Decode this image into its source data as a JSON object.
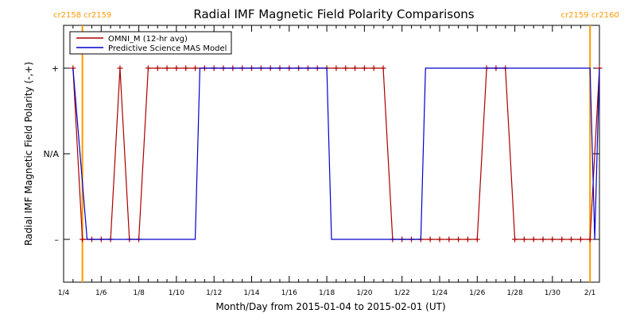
{
  "chart_data": {
    "type": "line",
    "title": "Radial IMF Magnetic Field Polarity Comparisons",
    "xlabel": "Month/Day from 2015-01-04 to 2015-02-01 (UT)",
    "ylabel": "Radial IMF Magnetic Field Polarity (-,+)",
    "x_start": "2015-01-04",
    "x_end": "2015-02-01",
    "xlim": [
      "2015-01-04T00:00",
      "2015-02-01T12:00"
    ],
    "ylim": [
      -1.5,
      1.5
    ],
    "x_tick_labels": [
      {
        "date": "2015-01-04",
        "label": "1/4"
      },
      {
        "date": "2015-01-06",
        "label": "1/6"
      },
      {
        "date": "2015-01-08",
        "label": "1/8"
      },
      {
        "date": "2015-01-10",
        "label": "1/10"
      },
      {
        "date": "2015-01-12",
        "label": "1/12"
      },
      {
        "date": "2015-01-14",
        "label": "1/14"
      },
      {
        "date": "2015-01-16",
        "label": "1/16"
      },
      {
        "date": "2015-01-18",
        "label": "1/18"
      },
      {
        "date": "2015-01-20",
        "label": "1/20"
      },
      {
        "date": "2015-01-22",
        "label": "1/22"
      },
      {
        "date": "2015-01-24",
        "label": "1/24"
      },
      {
        "date": "2015-01-26",
        "label": "1/26"
      },
      {
        "date": "2015-01-28",
        "label": "1/28"
      },
      {
        "date": "2015-01-30",
        "label": "1/30"
      },
      {
        "date": "2015-02-01",
        "label": "2/1"
      }
    ],
    "y_tick_labels": [
      {
        "value": 1,
        "label": "+"
      },
      {
        "value": 0,
        "label": "N/A"
      },
      {
        "value": -1,
        "label": "–"
      }
    ],
    "legend_position": "top-left",
    "carrington_markers": [
      {
        "date": "2015-01-05T00:00",
        "label": "cr2158 cr2159",
        "color": "#ff9900"
      },
      {
        "date": "2015-02-01T00:00",
        "label": "cr2159 cr2160",
        "color": "#ff9900"
      }
    ],
    "series": [
      {
        "name": "OMNI_M (12-hr avg)",
        "color": "#aa0000",
        "marker": "+",
        "points": [
          [
            "2015-01-04T12:00",
            1
          ],
          [
            "2015-01-05T00:00",
            -1
          ],
          [
            "2015-01-05T12:00",
            -1
          ],
          [
            "2015-01-06T00:00",
            -1
          ],
          [
            "2015-01-06T12:00",
            -1
          ],
          [
            "2015-01-07T00:00",
            1
          ],
          [
            "2015-01-07T12:00",
            -1
          ],
          [
            "2015-01-08T00:00",
            -1
          ],
          [
            "2015-01-08T12:00",
            1
          ],
          [
            "2015-01-09T00:00",
            1
          ],
          [
            "2015-01-09T12:00",
            1
          ],
          [
            "2015-01-10T00:00",
            1
          ],
          [
            "2015-01-10T12:00",
            1
          ],
          [
            "2015-01-11T00:00",
            1
          ],
          [
            "2015-01-11T12:00",
            1
          ],
          [
            "2015-01-12T00:00",
            1
          ],
          [
            "2015-01-12T12:00",
            1
          ],
          [
            "2015-01-13T00:00",
            1
          ],
          [
            "2015-01-13T12:00",
            1
          ],
          [
            "2015-01-14T00:00",
            1
          ],
          [
            "2015-01-14T12:00",
            1
          ],
          [
            "2015-01-15T00:00",
            1
          ],
          [
            "2015-01-15T12:00",
            1
          ],
          [
            "2015-01-16T00:00",
            1
          ],
          [
            "2015-01-16T12:00",
            1
          ],
          [
            "2015-01-17T00:00",
            1
          ],
          [
            "2015-01-17T12:00",
            1
          ],
          [
            "2015-01-18T00:00",
            1
          ],
          [
            "2015-01-18T12:00",
            1
          ],
          [
            "2015-01-19T00:00",
            1
          ],
          [
            "2015-01-19T12:00",
            1
          ],
          [
            "2015-01-20T00:00",
            1
          ],
          [
            "2015-01-20T12:00",
            1
          ],
          [
            "2015-01-21T00:00",
            1
          ],
          [
            "2015-01-21T12:00",
            -1
          ],
          [
            "2015-01-22T00:00",
            -1
          ],
          [
            "2015-01-22T12:00",
            -1
          ],
          [
            "2015-01-23T00:00",
            -1
          ],
          [
            "2015-01-23T12:00",
            -1
          ],
          [
            "2015-01-24T00:00",
            -1
          ],
          [
            "2015-01-24T12:00",
            -1
          ],
          [
            "2015-01-25T00:00",
            -1
          ],
          [
            "2015-01-25T12:00",
            -1
          ],
          [
            "2015-01-26T00:00",
            -1
          ],
          [
            "2015-01-26T12:00",
            1
          ],
          [
            "2015-01-27T00:00",
            1
          ],
          [
            "2015-01-27T12:00",
            1
          ],
          [
            "2015-01-28T00:00",
            -1
          ],
          [
            "2015-01-28T12:00",
            -1
          ],
          [
            "2015-01-29T00:00",
            -1
          ],
          [
            "2015-01-29T12:00",
            -1
          ],
          [
            "2015-01-30T00:00",
            -1
          ],
          [
            "2015-01-30T12:00",
            -1
          ],
          [
            "2015-01-31T00:00",
            -1
          ],
          [
            "2015-01-31T12:00",
            -1
          ],
          [
            "2015-02-01T00:00",
            -1
          ],
          [
            "2015-02-01T12:00",
            1
          ]
        ]
      },
      {
        "name": "Predictive Science MAS Model",
        "color": "#0000cc",
        "points": [
          [
            "2015-01-04T12:00",
            1
          ],
          [
            "2015-01-05T06:00",
            -1
          ],
          [
            "2015-01-11T00:00",
            -1
          ],
          [
            "2015-01-11T06:00",
            1
          ],
          [
            "2015-01-18T00:00",
            1
          ],
          [
            "2015-01-18T06:00",
            -1
          ],
          [
            "2015-01-23T00:00",
            -1
          ],
          [
            "2015-01-23T06:00",
            1
          ],
          [
            "2015-02-01T00:00",
            1
          ],
          [
            "2015-02-01T06:00",
            -1
          ],
          [
            "2015-02-01T12:00",
            1
          ]
        ]
      }
    ]
  }
}
